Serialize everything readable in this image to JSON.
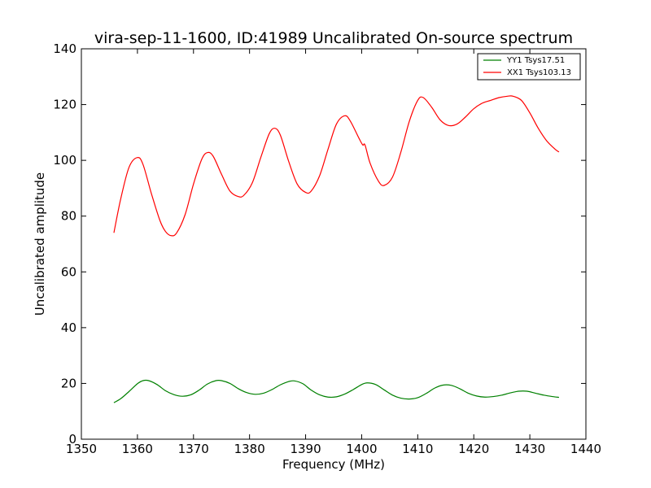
{
  "chart_data": {
    "type": "line",
    "title": "vira-sep-11-1600, ID:41989 Uncalibrated On-source spectrum",
    "xlabel": "Frequency (MHz)",
    "ylabel": "Uncalibrated amplitude",
    "xlim": [
      1350,
      1440
    ],
    "ylim": [
      0,
      140
    ],
    "xticks": [
      "1350",
      "1360",
      "1370",
      "1380",
      "1390",
      "1400",
      "1410",
      "1420",
      "1430",
      "1440"
    ],
    "yticks": [
      "0",
      "20",
      "40",
      "60",
      "80",
      "100",
      "120",
      "140"
    ],
    "grid": false,
    "legend_position": "top-right",
    "series": [
      {
        "name": "YY1 Tsys17.51",
        "color": "#008000",
        "x": [
          1355.8,
          1357,
          1358.5,
          1360,
          1361,
          1362,
          1363.5,
          1365,
          1366.5,
          1368,
          1369.5,
          1371,
          1372.5,
          1374,
          1375,
          1376.5,
          1378,
          1379.5,
          1381,
          1382.5,
          1384,
          1385.5,
          1387,
          1388,
          1389.5,
          1391,
          1392.5,
          1394,
          1395.5,
          1397,
          1398.5,
          1400,
          1401,
          1402.5,
          1404,
          1405.5,
          1407,
          1408.5,
          1410,
          1411.5,
          1413,
          1414.5,
          1416,
          1417.5,
          1419,
          1420.5,
          1422,
          1423.5,
          1425,
          1426.5,
          1428,
          1429.5,
          1431,
          1432.5,
          1434,
          1435.2
        ],
        "y": [
          13.1,
          14.5,
          17.1,
          19.9,
          21.0,
          21.0,
          19.6,
          17.4,
          16.0,
          15.4,
          15.9,
          17.6,
          19.8,
          21.0,
          21.0,
          20.0,
          18.1,
          16.7,
          16.1,
          16.5,
          17.8,
          19.5,
          20.7,
          20.9,
          19.9,
          17.6,
          15.9,
          15.1,
          15.2,
          16.2,
          17.8,
          19.6,
          20.2,
          19.6,
          17.7,
          15.8,
          14.7,
          14.4,
          14.9,
          16.4,
          18.3,
          19.4,
          19.3,
          18.1,
          16.5,
          15.5,
          15.1,
          15.3,
          15.8,
          16.6,
          17.2,
          17.2,
          16.5,
          15.8,
          15.3,
          15.0
        ]
      },
      {
        "name": "XX1 Tsys103.13",
        "color": "#ff0000",
        "x": [
          1355.8,
          1357,
          1358.5,
          1360,
          1361,
          1362.5,
          1364,
          1365,
          1366,
          1367,
          1368.5,
          1370,
          1371.5,
          1372.5,
          1373.5,
          1375,
          1376.5,
          1378,
          1379,
          1380.5,
          1382,
          1383.5,
          1384.5,
          1385.5,
          1387,
          1388.5,
          1390,
          1391,
          1392.5,
          1394,
          1395.5,
          1397,
          1398,
          1399.5,
          1400.2,
          1400.6,
          1401.5,
          1403,
          1404,
          1405.5,
          1407,
          1408.5,
          1410,
          1411,
          1412.5,
          1414,
          1415.5,
          1417,
          1418.5,
          1420,
          1421.5,
          1423,
          1424.5,
          1426,
          1427,
          1428.5,
          1430,
          1431.5,
          1433,
          1434.5,
          1435.2
        ],
        "y": [
          74.0,
          86.0,
          97.5,
          101.0,
          98.5,
          88.0,
          78.5,
          74.5,
          73.0,
          74.0,
          80.5,
          91.5,
          100.5,
          102.8,
          101.5,
          95.0,
          89.0,
          87.0,
          87.5,
          92.0,
          101.0,
          109.5,
          111.5,
          109.0,
          99.5,
          91.5,
          88.5,
          89.0,
          94.5,
          104.0,
          113.0,
          116.0,
          114.0,
          108.0,
          105.5,
          105.5,
          99.0,
          92.5,
          91.0,
          94.0,
          103.0,
          114.0,
          121.5,
          122.5,
          119.0,
          114.5,
          112.5,
          113.0,
          115.5,
          118.5,
          120.5,
          121.5,
          122.5,
          123.0,
          123.0,
          121.5,
          117.0,
          111.5,
          107.0,
          104.0,
          103.0
        ]
      }
    ]
  }
}
